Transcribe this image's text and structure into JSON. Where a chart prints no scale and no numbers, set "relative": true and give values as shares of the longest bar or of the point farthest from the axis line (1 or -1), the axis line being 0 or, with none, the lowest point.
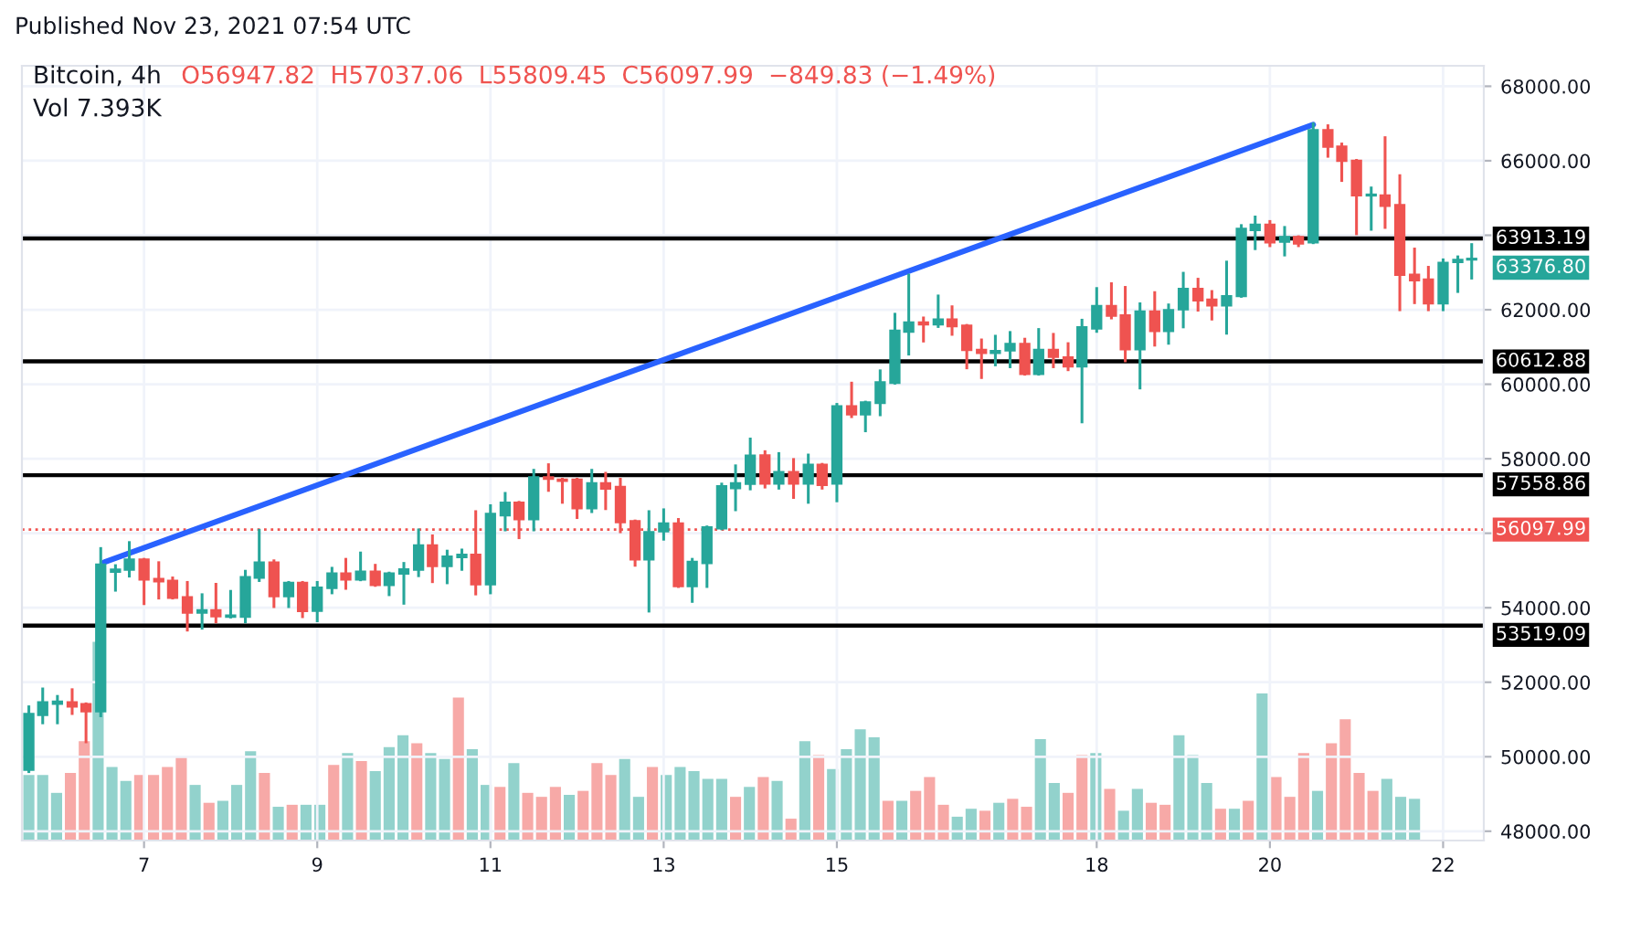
{
  "chart_data": [
    {
      "type": "candlestick",
      "title": "Bitcoin, 4h",
      "annotations": [
        "Published Nov 23, 2021 07:54 UTC",
        "O56947.82",
        "H57037.06",
        "L55809.45",
        "C56097.99",
        "−849.83 (−1.49%)",
        "63376.80"
      ],
      "x": [
        5.67,
        5.83,
        6,
        6.17,
        6.33,
        6.5,
        6.67,
        6.83,
        7,
        7.17,
        7.33,
        7.5,
        7.67,
        7.83,
        8,
        8.17,
        8.33,
        8.5,
        8.67,
        8.83,
        9,
        9.17,
        9.33,
        9.5,
        9.67,
        9.83,
        10,
        10.17,
        10.33,
        10.5,
        10.67,
        10.83,
        11,
        11.17,
        11.33,
        11.5,
        11.67,
        11.83,
        12,
        12.17,
        12.33,
        12.5,
        12.67,
        12.83,
        13,
        13.17,
        13.33,
        13.5,
        13.67,
        13.83,
        14,
        14.17,
        14.33,
        14.5,
        14.67,
        14.83,
        15,
        15.17,
        15.33,
        15.5,
        15.67,
        15.83,
        16,
        16.17,
        16.33,
        16.5,
        16.67,
        16.83,
        17,
        17.17,
        17.33,
        17.5,
        17.67,
        17.83,
        18,
        18.17,
        18.33,
        18.5,
        18.67,
        18.83,
        19,
        19.17,
        19.33,
        19.5,
        19.67,
        19.83,
        20,
        20.17,
        20.33,
        20.5,
        20.67,
        20.83,
        21,
        21.17,
        21.33,
        21.5,
        21.67,
        21.83,
        22,
        22.17,
        22.33
      ],
      "ohlc": [
        [
          49640,
          51340,
          49600,
          51160
        ],
        [
          51110,
          51820,
          50910,
          51470
        ],
        [
          51410,
          51620,
          50910,
          51490
        ],
        [
          51470,
          51800,
          51160,
          51340
        ],
        [
          51420,
          51420,
          50400,
          51210
        ],
        [
          51210,
          55590,
          51100,
          55170
        ],
        [
          54960,
          55130,
          54470,
          55030
        ],
        [
          55010,
          55750,
          54850,
          55300
        ],
        [
          55300,
          55300,
          54110,
          54750
        ],
        [
          54780,
          55210,
          54260,
          54700
        ],
        [
          54730,
          54800,
          54260,
          54260
        ],
        [
          54290,
          54680,
          53400,
          53860
        ],
        [
          53860,
          54350,
          53450,
          53940
        ],
        [
          53940,
          54630,
          53620,
          53760
        ],
        [
          53750,
          54440,
          53750,
          53800
        ],
        [
          53750,
          54980,
          53620,
          54830
        ],
        [
          54800,
          56080,
          54730,
          55220
        ],
        [
          55220,
          55260,
          54030,
          54300
        ],
        [
          54300,
          54680,
          54030,
          54680
        ],
        [
          54680,
          54680,
          53760,
          53900
        ],
        [
          53910,
          54680,
          53650,
          54550
        ],
        [
          54520,
          55060,
          54400,
          54930
        ],
        [
          54930,
          55300,
          54520,
          54750
        ],
        [
          54750,
          55470,
          54750,
          54980
        ],
        [
          54980,
          55140,
          54600,
          54600
        ],
        [
          54600,
          54930,
          54350,
          54930
        ],
        [
          54910,
          55190,
          54120,
          55040
        ],
        [
          55010,
          56090,
          54860,
          55680
        ],
        [
          55680,
          55930,
          54700,
          55110
        ],
        [
          55110,
          55520,
          54670,
          55385
        ],
        [
          55350,
          55550,
          55030,
          55430
        ],
        [
          55430,
          56580,
          54370,
          54620
        ],
        [
          54620,
          56740,
          54400,
          56530
        ],
        [
          56470,
          57070,
          56090,
          56830
        ],
        [
          56830,
          56830,
          55880,
          56370
        ],
        [
          56370,
          57690,
          56090,
          57510
        ],
        [
          57510,
          57840,
          57150,
          57450
        ],
        [
          57450,
          57450,
          56830,
          57400
        ],
        [
          57450,
          57450,
          56420,
          56660
        ],
        [
          56660,
          57690,
          56580,
          57350
        ],
        [
          57350,
          57610,
          56660,
          57190
        ],
        [
          57250,
          57450,
          56040,
          56290
        ],
        [
          56330,
          56330,
          55140,
          55290
        ],
        [
          55290,
          56580,
          53910,
          56040
        ],
        [
          56040,
          56630,
          55840,
          56270
        ],
        [
          56270,
          56370,
          54570,
          54570
        ],
        [
          54570,
          55300,
          54170,
          55240
        ],
        [
          55190,
          56170,
          54570,
          56170
        ],
        [
          56120,
          57320,
          56120,
          57270
        ],
        [
          57200,
          57810,
          56630,
          57350
        ],
        [
          57320,
          58530,
          57190,
          58090
        ],
        [
          58100,
          58190,
          57240,
          57325
        ],
        [
          57325,
          58140,
          57210,
          57650
        ],
        [
          57650,
          57980,
          56960,
          57325
        ],
        [
          57325,
          58100,
          56830,
          57850
        ],
        [
          57850,
          57850,
          57210,
          57290
        ],
        [
          57325,
          59460,
          56870,
          59420
        ],
        [
          59420,
          60030,
          59130,
          59180
        ],
        [
          59180,
          59520,
          58750,
          59520
        ],
        [
          59490,
          60360,
          59180,
          60060
        ],
        [
          60030,
          61880,
          60030,
          61450
        ],
        [
          61400,
          62930,
          60810,
          61670
        ],
        [
          61670,
          61780,
          61160,
          61600
        ],
        [
          61600,
          62370,
          61550,
          61750
        ],
        [
          61750,
          62080,
          61340,
          61550
        ],
        [
          61580,
          61580,
          60440,
          60910
        ],
        [
          60930,
          61190,
          60180,
          60830
        ],
        [
          60830,
          61290,
          60520,
          60900
        ],
        [
          60900,
          61390,
          60470,
          61090
        ],
        [
          61090,
          61210,
          60270,
          60270
        ],
        [
          60270,
          61470,
          60270,
          60930
        ],
        [
          60930,
          61340,
          60470,
          60730
        ],
        [
          60730,
          61090,
          60390,
          60470
        ],
        [
          60470,
          61720,
          58990,
          61540
        ],
        [
          61490,
          62570,
          61420,
          62110
        ],
        [
          62110,
          62700,
          61780,
          61830
        ],
        [
          61860,
          62600,
          60630,
          60930
        ],
        [
          60930,
          62160,
          59900,
          61965
        ],
        [
          61965,
          62460,
          61050,
          61420
        ],
        [
          61420,
          62130,
          61100,
          62000
        ],
        [
          62000,
          62980,
          61540,
          62570
        ],
        [
          62570,
          62820,
          61990,
          62240
        ],
        [
          62280,
          62490,
          61750,
          62110
        ],
        [
          62110,
          63280,
          61370,
          62370
        ],
        [
          62360,
          64260,
          62360,
          64180
        ],
        [
          64130,
          64490,
          63640,
          64290
        ],
        [
          64290,
          64370,
          63720,
          63800
        ],
        [
          63820,
          64210,
          63470,
          63960
        ],
        [
          63960,
          63960,
          63720,
          63770
        ],
        [
          63800,
          66990,
          63800,
          66830
        ],
        [
          66830,
          66940,
          66120,
          66370
        ],
        [
          66390,
          66450,
          65470,
          65990
        ],
        [
          66010,
          66010,
          64040,
          65060
        ],
        [
          65060,
          65270,
          64160,
          65100
        ],
        [
          65080,
          66620,
          64210,
          64780
        ],
        [
          64820,
          65600,
          62000,
          62930
        ],
        [
          62950,
          63630,
          62190,
          62780
        ],
        [
          62820,
          63140,
          62000,
          62160
        ],
        [
          62160,
          63340,
          62000,
          63270
        ],
        [
          63270,
          63420,
          62490,
          63350
        ],
        [
          63340,
          63750,
          62850,
          63376.8
        ]
      ],
      "series": [
        {
          "type": "line",
          "color": "#2962ff",
          "x": [
            6.54,
            20.5
          ],
          "values": [
            55220,
            66970
          ]
        }
      ],
      "xlim": [
        5.59,
        22.47
      ],
      "xticks": [
        7,
        9,
        11,
        13,
        15,
        18,
        20,
        22
      ],
      "ylim": [
        47750,
        68550
      ],
      "yticks": [
        {
          "value": 48000,
          "label": "48000.00"
        },
        {
          "value": 50000,
          "label": "50000.00"
        },
        {
          "value": 52000,
          "label": "52000.00"
        },
        {
          "value": 54000,
          "label": "54000.00"
        },
        {
          "value": 56000,
          "label": null
        },
        {
          "value": 58000,
          "label": "58000.00"
        },
        {
          "value": 60000,
          "label": "60000.00"
        },
        {
          "value": 62000,
          "label": "62000.00"
        },
        {
          "value": 64000,
          "label": null
        },
        {
          "value": 66000,
          "label": "66000.00"
        },
        {
          "value": 68000,
          "label": "68000.00"
        }
      ],
      "ref_lines": [
        {
          "axis": "y",
          "value": 63913.19,
          "label": "63913.19",
          "color": "#000000",
          "line_style": "solid"
        },
        {
          "axis": "y",
          "value": 60612.88,
          "label": "60612.88",
          "color": "#000000",
          "line_style": "solid"
        },
        {
          "axis": "y",
          "value": 57558.86,
          "label": "57558.86",
          "color": "#000000",
          "line_style": "solid"
        },
        {
          "axis": "y",
          "value": 53519.09,
          "label": "53519.09",
          "color": "#000000",
          "line_style": "solid"
        },
        {
          "axis": "y",
          "value": 56097.99,
          "label": "56097.99",
          "color": "#ef5350",
          "line_style": "dotted"
        }
      ],
      "grid": true
    },
    {
      "type": "bar",
      "relative": true,
      "annotations": [
        "Vol 7.393K"
      ],
      "categories": [
        null,
        null,
        null,
        null,
        null,
        null,
        null,
        null,
        null,
        null,
        null,
        null,
        null,
        null,
        null,
        null,
        null,
        null,
        null,
        null,
        null,
        null,
        null,
        null,
        null,
        null,
        null,
        null,
        null,
        null,
        null,
        null,
        null,
        null,
        null,
        null,
        null,
        null,
        null,
        null,
        null,
        null,
        null,
        null,
        null,
        null,
        null,
        null,
        null,
        null,
        null,
        null,
        null,
        null,
        null,
        null,
        null,
        null,
        null,
        null,
        null,
        null,
        null,
        null,
        null,
        null,
        null,
        null,
        null,
        null,
        null,
        null,
        null,
        null,
        null,
        null,
        null,
        null,
        null,
        null,
        null,
        null,
        null,
        null,
        null,
        null,
        null,
        null,
        null,
        null,
        null,
        null,
        null,
        null,
        null,
        null,
        null,
        null,
        null,
        null,
        null
      ],
      "values": [
        0.33,
        0.33,
        0.24,
        0.34,
        0.5,
        1,
        0.37,
        0.3,
        0.33,
        0.33,
        0.37,
        0.42,
        0.28,
        0.19,
        0.2,
        0.28,
        0.45,
        0.34,
        0.17,
        0.18,
        0.18,
        0.18,
        0.38,
        0.44,
        0.4,
        0.35,
        0.47,
        0.53,
        0.49,
        0.44,
        0.41,
        0.72,
        0.46,
        0.28,
        0.27,
        0.39,
        0.24,
        0.22,
        0.27,
        0.23,
        0.25,
        0.39,
        0.33,
        0.41,
        0.22,
        0.37,
        0.33,
        0.37,
        0.35,
        0.31,
        0.31,
        0.22,
        0.27,
        0.32,
        0.3,
        0.11,
        0.5,
        0.43,
        0.36,
        0.46,
        0.56,
        0.52,
        0.2,
        0.2,
        0.25,
        0.32,
        0.18,
        0.12,
        0.16,
        0.15,
        0.19,
        0.21,
        0.17,
        0.51,
        0.29,
        0.24,
        0.43,
        0.44,
        0.26,
        0.15,
        0.26,
        0.19,
        0.18,
        0.53,
        0.43,
        0.29,
        0.16,
        0.16,
        0.2,
        0.74,
        0.32,
        0.22,
        0.44,
        0.25,
        0.49,
        0.61,
        0.34,
        0.25,
        0.31,
        0.22,
        0.21
      ],
      "colors": [
        "#92d2cc",
        "#92d2cc",
        "#92d2cc",
        "#f7a9a7",
        "#f7a9a7",
        "#92d2cc",
        "#92d2cc",
        "#92d2cc",
        "#f7a9a7",
        "#f7a9a7",
        "#f7a9a7",
        "#f7a9a7",
        "#92d2cc",
        "#f7a9a7",
        "#92d2cc",
        "#92d2cc",
        "#92d2cc",
        "#f7a9a7",
        "#92d2cc",
        "#f7a9a7",
        "#92d2cc",
        "#92d2cc",
        "#f7a9a7",
        "#92d2cc",
        "#f7a9a7",
        "#92d2cc",
        "#92d2cc",
        "#92d2cc",
        "#f7a9a7",
        "#92d2cc",
        "#92d2cc",
        "#f7a9a7",
        "#92d2cc",
        "#92d2cc",
        "#f7a9a7",
        "#92d2cc",
        "#f7a9a7",
        "#f7a9a7",
        "#f7a9a7",
        "#92d2cc",
        "#f7a9a7",
        "#f7a9a7",
        "#f7a9a7",
        "#92d2cc",
        "#92d2cc",
        "#f7a9a7",
        "#92d2cc",
        "#92d2cc",
        "#92d2cc",
        "#92d2cc",
        "#92d2cc",
        "#f7a9a7",
        "#92d2cc",
        "#f7a9a7",
        "#92d2cc",
        "#f7a9a7",
        "#92d2cc",
        "#f7a9a7",
        "#92d2cc",
        "#92d2cc",
        "#92d2cc",
        "#92d2cc",
        "#f7a9a7",
        "#92d2cc",
        "#f7a9a7",
        "#f7a9a7",
        "#f7a9a7",
        "#92d2cc",
        "#92d2cc",
        "#f7a9a7",
        "#92d2cc",
        "#f7a9a7",
        "#f7a9a7",
        "#92d2cc",
        "#92d2cc",
        "#f7a9a7",
        "#f7a9a7",
        "#92d2cc",
        "#f7a9a7",
        "#92d2cc",
        "#92d2cc",
        "#f7a9a7",
        "#f7a9a7",
        "#92d2cc",
        "#92d2cc",
        "#92d2cc",
        "#f7a9a7",
        "#92d2cc",
        "#f7a9a7",
        "#92d2cc",
        "#f7a9a7",
        "#f7a9a7",
        "#f7a9a7",
        "#92d2cc",
        "#f7a9a7",
        "#f7a9a7",
        "#f7a9a7",
        "#f7a9a7",
        "#92d2cc",
        "#92d2cc",
        "#92d2cc"
      ]
    }
  ]
}
